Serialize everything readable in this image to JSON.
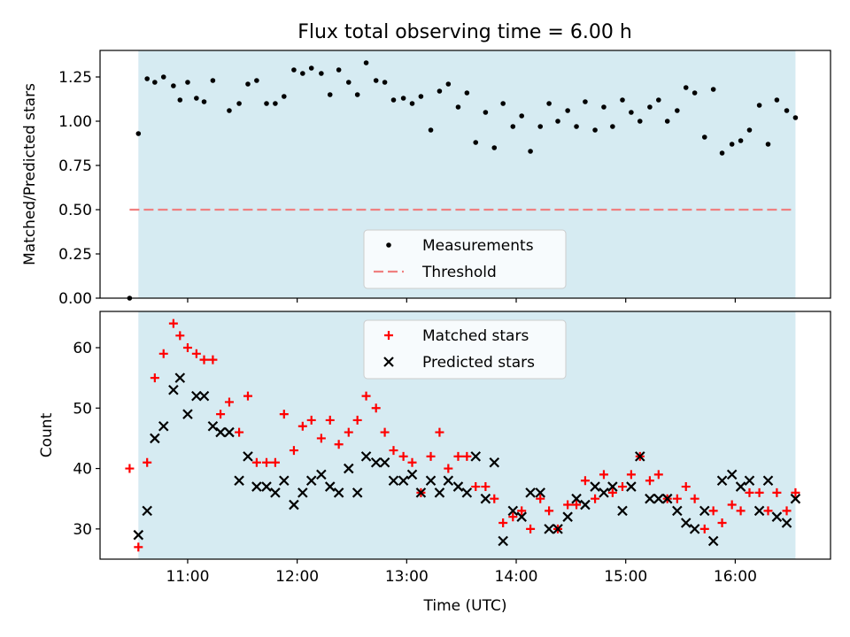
{
  "title": "Flux total observing time = 6.00 h",
  "chart_data": [
    {
      "type": "scatter",
      "ylabel": "Matched/Predicted stars",
      "xlabel": "",
      "ylim": [
        0.0,
        1.4
      ],
      "yticks": [
        0.0,
        0.25,
        0.5,
        0.75,
        1.0,
        1.25
      ],
      "ytick_labels": [
        "0.00",
        "0.25",
        "0.50",
        "0.75",
        "1.00",
        "1.25"
      ],
      "xlim_hours": [
        10.2,
        16.87
      ],
      "shaded_span_hours": [
        10.55,
        16.55
      ],
      "grid": false,
      "legend_position": "lower center",
      "legend": [
        "Measurements",
        "Threshold"
      ],
      "threshold": {
        "name": "Threshold",
        "value": 0.5,
        "x_from": 10.47,
        "x_to": 16.55,
        "style": "dashed"
      },
      "series": [
        {
          "name": "Measurements",
          "marker": "dot",
          "x": [
            10.47,
            10.55,
            10.63,
            10.7,
            10.78,
            10.87,
            10.93,
            11.0,
            11.08,
            11.15,
            11.23,
            11.38,
            11.47,
            11.55,
            11.63,
            11.72,
            11.8,
            11.88,
            11.97,
            12.05,
            12.13,
            12.22,
            12.3,
            12.38,
            12.47,
            12.55,
            12.63,
            12.72,
            12.8,
            12.88,
            12.97,
            13.05,
            13.13,
            13.22,
            13.3,
            13.38,
            13.47,
            13.55,
            13.63,
            13.72,
            13.8,
            13.88,
            13.97,
            14.05,
            14.13,
            14.22,
            14.3,
            14.38,
            14.47,
            14.55,
            14.63,
            14.72,
            14.8,
            14.88,
            14.97,
            15.05,
            15.13,
            15.22,
            15.3,
            15.38,
            15.47,
            15.55,
            15.63,
            15.72,
            15.8,
            15.88,
            15.97,
            16.05,
            16.13,
            16.22,
            16.3,
            16.38,
            16.47,
            16.55
          ],
          "y": [
            0.0,
            0.93,
            1.24,
            1.22,
            1.25,
            1.2,
            1.12,
            1.22,
            1.13,
            1.11,
            1.23,
            1.06,
            1.1,
            1.21,
            1.23,
            1.1,
            1.1,
            1.14,
            1.29,
            1.27,
            1.3,
            1.27,
            1.15,
            1.29,
            1.22,
            1.15,
            1.33,
            1.23,
            1.22,
            1.12,
            1.13,
            1.1,
            1.14,
            0.95,
            1.17,
            1.21,
            1.08,
            1.16,
            0.88,
            1.05,
            0.85,
            1.1,
            0.97,
            1.03,
            0.83,
            0.97,
            1.1,
            1.0,
            1.06,
            0.97,
            1.11,
            0.95,
            1.08,
            0.97,
            1.12,
            1.05,
            1.0,
            1.08,
            1.12,
            1.0,
            1.06,
            1.19,
            1.16,
            0.91,
            1.18,
            0.82,
            0.87,
            0.89,
            0.95,
            1.09,
            0.87,
            1.12,
            1.06,
            1.02
          ]
        }
      ]
    },
    {
      "type": "scatter",
      "ylabel": "Count",
      "xlabel": "Time (UTC)",
      "ylim": [
        25,
        66
      ],
      "yticks": [
        30,
        40,
        50,
        60
      ],
      "ytick_labels": [
        "30",
        "40",
        "50",
        "60"
      ],
      "xlim_hours": [
        10.2,
        16.87
      ],
      "xticks_hours": [
        11,
        12,
        13,
        14,
        15,
        16
      ],
      "xtick_labels": [
        "11:00",
        "12:00",
        "13:00",
        "14:00",
        "15:00",
        "16:00"
      ],
      "shaded_span_hours": [
        10.55,
        16.55
      ],
      "grid": false,
      "legend_position": "upper center",
      "legend": [
        "Matched stars",
        "Predicted stars"
      ],
      "series": [
        {
          "name": "Matched stars",
          "marker": "plus",
          "x": [
            10.47,
            10.55,
            10.63,
            10.7,
            10.78,
            10.87,
            10.93,
            11.0,
            11.08,
            11.15,
            11.23,
            11.3,
            11.38,
            11.47,
            11.55,
            11.63,
            11.72,
            11.8,
            11.88,
            11.97,
            12.05,
            12.13,
            12.22,
            12.3,
            12.38,
            12.47,
            12.55,
            12.63,
            12.72,
            12.8,
            12.88,
            12.97,
            13.05,
            13.13,
            13.22,
            13.3,
            13.38,
            13.47,
            13.55,
            13.63,
            13.72,
            13.8,
            13.88,
            13.97,
            14.05,
            14.13,
            14.22,
            14.3,
            14.38,
            14.47,
            14.55,
            14.63,
            14.72,
            14.8,
            14.88,
            14.97,
            15.05,
            15.13,
            15.22,
            15.3,
            15.38,
            15.47,
            15.55,
            15.63,
            15.72,
            15.8,
            15.88,
            15.97,
            16.05,
            16.13,
            16.22,
            16.3,
            16.38,
            16.47,
            16.55
          ],
          "y": [
            40,
            27,
            41,
            55,
            59,
            64,
            62,
            60,
            59,
            58,
            58,
            49,
            51,
            46,
            52,
            41,
            41,
            41,
            49,
            43,
            47,
            48,
            45,
            48,
            44,
            46,
            48,
            52,
            50,
            46,
            43,
            42,
            41,
            36,
            42,
            46,
            40,
            42,
            42,
            37,
            37,
            35,
            31,
            32,
            33,
            30,
            35,
            33,
            30,
            34,
            34,
            38,
            35,
            39,
            36,
            37,
            39,
            42,
            38,
            39,
            35,
            35,
            37,
            35,
            30,
            33,
            31,
            34,
            33,
            36,
            36,
            33,
            36,
            33,
            36
          ]
        },
        {
          "name": "Predicted stars",
          "marker": "x",
          "x": [
            10.55,
            10.63,
            10.7,
            10.78,
            10.87,
            10.93,
            11.0,
            11.08,
            11.15,
            11.23,
            11.3,
            11.38,
            11.47,
            11.55,
            11.63,
            11.72,
            11.8,
            11.88,
            11.97,
            12.05,
            12.13,
            12.22,
            12.3,
            12.38,
            12.47,
            12.55,
            12.63,
            12.72,
            12.8,
            12.88,
            12.97,
            13.05,
            13.13,
            13.22,
            13.3,
            13.38,
            13.47,
            13.55,
            13.63,
            13.72,
            13.8,
            13.88,
            13.97,
            14.05,
            14.13,
            14.22,
            14.3,
            14.38,
            14.47,
            14.55,
            14.63,
            14.72,
            14.8,
            14.88,
            14.97,
            15.05,
            15.13,
            15.22,
            15.3,
            15.38,
            15.47,
            15.55,
            15.63,
            15.72,
            15.8,
            15.88,
            15.97,
            16.05,
            16.13,
            16.22,
            16.3,
            16.38,
            16.47,
            16.55
          ],
          "y": [
            29,
            33,
            45,
            47,
            53,
            55,
            49,
            52,
            52,
            47,
            46,
            46,
            38,
            42,
            37,
            37,
            36,
            38,
            34,
            36,
            38,
            39,
            37,
            36,
            40,
            36,
            42,
            41,
            41,
            38,
            38,
            39,
            36,
            38,
            36,
            38,
            37,
            36,
            42,
            35,
            41,
            28,
            33,
            32,
            36,
            36,
            30,
            30,
            32,
            35,
            34,
            37,
            36,
            37,
            33,
            37,
            42,
            35,
            35,
            35,
            33,
            31,
            30,
            33,
            28,
            38,
            39,
            37,
            38,
            33,
            38,
            32,
            31,
            35
          ]
        }
      ]
    }
  ],
  "colors": {
    "shade": "#add8e6",
    "measurement": "#000000",
    "threshold": "#f08080",
    "matched": "#ff0000",
    "predicted": "#000000"
  }
}
